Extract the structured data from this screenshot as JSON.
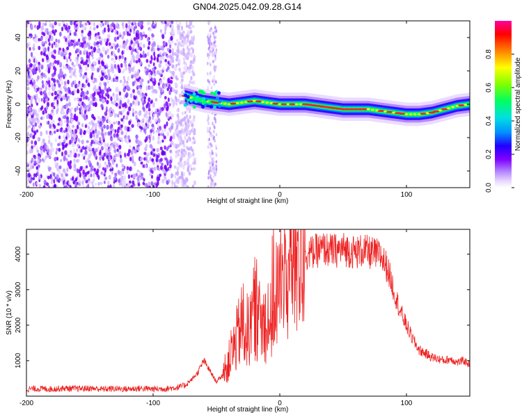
{
  "title": "GN04.2025.042.09.28.G14",
  "chart_data": [
    {
      "type": "heatmap",
      "xlabel": "Height of straight line (km)",
      "ylabel": "Frequency (Hz)",
      "xlim": [
        -200,
        150
      ],
      "ylim": [
        -50,
        50
      ],
      "x_ticks": [
        -200,
        -100,
        0,
        100
      ],
      "y_ticks": [
        -40,
        -20,
        0,
        20,
        40
      ],
      "grid": false,
      "colorbar": {
        "label": "Normalized spectral amplitude",
        "range": [
          0,
          1
        ],
        "ticks": [
          "0.0",
          "0.2",
          "0.4",
          "0.6",
          "0.8"
        ],
        "colors": [
          "#ffffff",
          "#e8d8ff",
          "#b080ff",
          "#8000ff",
          "#2000ff",
          "#0090ff",
          "#00e0e0",
          "#00ff60",
          "#80ff00",
          "#ffff00",
          "#ff8000",
          "#ff0000",
          "#ff00a0"
        ]
      },
      "noise_region_x": [
        -200,
        -75
      ],
      "noise_band_x": [
        -57,
        -50
      ],
      "signal_track": {
        "x": [
          -75,
          -60,
          -50,
          -40,
          -30,
          -20,
          -10,
          0,
          10,
          20,
          30,
          40,
          50,
          60,
          70,
          80,
          90,
          100,
          110,
          120,
          130,
          140,
          150
        ],
        "y": [
          5,
          2,
          1,
          0,
          1,
          2,
          1,
          0,
          0,
          0,
          -1,
          -2,
          -3,
          -3,
          -3,
          -4,
          -5,
          -6,
          -6,
          -5,
          -3,
          -1,
          0
        ]
      }
    },
    {
      "type": "line",
      "xlabel": "Height of straight line (km)",
      "ylabel": "SNR (10 * v/v)",
      "xlim": [
        -200,
        150
      ],
      "ylim": [
        0,
        4700
      ],
      "x_ticks": [
        -200,
        -100,
        0,
        100
      ],
      "y_ticks": [
        1000,
        2000,
        3000,
        4000
      ],
      "grid": false,
      "color": "#ee2222",
      "series": [
        {
          "x": [
            -200,
            -190,
            -180,
            -170,
            -160,
            -150,
            -140,
            -130,
            -120,
            -110,
            -100,
            -90,
            -80,
            -75,
            -70,
            -65,
            -60,
            -55,
            -50,
            -45,
            -40,
            -35,
            -30,
            -25,
            -20,
            -15,
            -10,
            -5,
            0,
            5,
            10,
            15,
            20,
            25,
            30,
            35,
            40,
            45,
            50,
            55,
            60,
            65,
            70,
            75,
            80,
            85,
            90,
            95,
            100,
            105,
            110,
            115,
            120,
            125,
            130,
            135,
            140,
            145,
            150
          ],
          "y": [
            200,
            210,
            200,
            220,
            210,
            220,
            200,
            210,
            200,
            220,
            200,
            210,
            250,
            300,
            450,
            650,
            1000,
            700,
            400,
            600,
            1000,
            1500,
            2000,
            1800,
            2500,
            2000,
            2200,
            2600,
            3200,
            3400,
            3700,
            3900,
            4000,
            4050,
            4100,
            4150,
            4100,
            4100,
            4150,
            4100,
            4050,
            4100,
            4050,
            4000,
            3950,
            3600,
            3000,
            2400,
            2000,
            1600,
            1300,
            1200,
            1100,
            1050,
            1000,
            1050,
            950,
            1000,
            900
          ]
        }
      ]
    }
  ]
}
